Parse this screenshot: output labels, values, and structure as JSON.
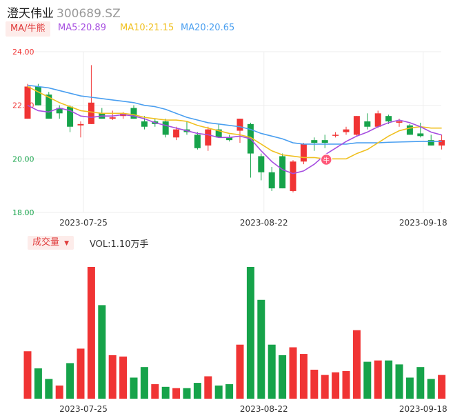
{
  "header": {
    "name": "澄天伟业",
    "code": "300689.SZ"
  },
  "legend": {
    "ma_tag": "MA/牛熊",
    "ma5": "MA5:20.89",
    "ma10": "MA10:21.15",
    "ma20": "MA20:20.65",
    "ma5_color": "#a64ee0",
    "ma10_color": "#f0c020",
    "ma20_color": "#4a9ff0"
  },
  "volume_panel": {
    "tag": "成交量",
    "tag_arrow": "▼",
    "value": "VOL:1.10万手"
  },
  "badge": {
    "icon": "bull-icon",
    "label": "牛"
  },
  "colors": {
    "up": "#f03434",
    "down": "#16a34a",
    "grid": "#eeeeee"
  },
  "chart_data": {
    "type": "candlestick",
    "y_ticks": [
      "24.00",
      "22.00",
      "20.00",
      "18.00"
    ],
    "ylim": [
      18,
      24
    ],
    "x_ticks": [
      "2023-07-25",
      "2023-08-22",
      "2023-09-18"
    ],
    "x_tick_index": [
      5,
      22,
      37
    ],
    "candles": [
      {
        "o": 21.5,
        "h": 22.8,
        "l": 21.5,
        "c": 22.7
      },
      {
        "o": 22.7,
        "h": 22.8,
        "l": 22.0,
        "c": 22.0
      },
      {
        "o": 22.4,
        "h": 22.5,
        "l": 21.5,
        "c": 21.5
      },
      {
        "o": 21.9,
        "h": 22.0,
        "l": 21.5,
        "c": 21.7
      },
      {
        "o": 21.95,
        "h": 22.0,
        "l": 21.0,
        "c": 21.2
      },
      {
        "o": 21.25,
        "h": 21.4,
        "l": 20.8,
        "c": 21.3
      },
      {
        "o": 21.3,
        "h": 23.5,
        "l": 21.3,
        "c": 22.1
      },
      {
        "o": 21.7,
        "h": 21.9,
        "l": 21.5,
        "c": 21.5
      },
      {
        "o": 21.5,
        "h": 21.8,
        "l": 21.45,
        "c": 21.55
      },
      {
        "o": 21.6,
        "h": 21.75,
        "l": 21.5,
        "c": 21.7
      },
      {
        "o": 21.9,
        "h": 22.0,
        "l": 21.5,
        "c": 21.5
      },
      {
        "o": 21.4,
        "h": 21.6,
        "l": 21.1,
        "c": 21.2
      },
      {
        "o": 21.4,
        "h": 21.5,
        "l": 21.2,
        "c": 21.3
      },
      {
        "o": 21.4,
        "h": 21.5,
        "l": 20.8,
        "c": 20.9
      },
      {
        "o": 20.8,
        "h": 21.2,
        "l": 20.7,
        "c": 21.1
      },
      {
        "o": 21.1,
        "h": 21.4,
        "l": 20.9,
        "c": 21.0
      },
      {
        "o": 20.9,
        "h": 21.0,
        "l": 20.35,
        "c": 20.4
      },
      {
        "o": 20.5,
        "h": 21.2,
        "l": 20.3,
        "c": 21.1
      },
      {
        "o": 21.1,
        "h": 21.3,
        "l": 20.8,
        "c": 20.8
      },
      {
        "o": 20.8,
        "h": 20.9,
        "l": 20.65,
        "c": 20.7
      },
      {
        "o": 21.05,
        "h": 21.5,
        "l": 20.6,
        "c": 21.5
      },
      {
        "o": 21.3,
        "h": 21.35,
        "l": 19.3,
        "c": 20.2
      },
      {
        "o": 20.1,
        "h": 20.2,
        "l": 19.2,
        "c": 19.5
      },
      {
        "o": 19.5,
        "h": 19.7,
        "l": 18.8,
        "c": 18.9
      },
      {
        "o": 20.1,
        "h": 20.2,
        "l": 18.9,
        "c": 18.9
      },
      {
        "o": 18.8,
        "h": 19.95,
        "l": 18.75,
        "c": 19.9
      },
      {
        "o": 19.9,
        "h": 20.6,
        "l": 19.8,
        "c": 20.55
      },
      {
        "o": 20.7,
        "h": 20.8,
        "l": 20.3,
        "c": 20.6
      },
      {
        "o": 20.7,
        "h": 20.9,
        "l": 20.4,
        "c": 20.6
      },
      {
        "o": 20.9,
        "h": 21.0,
        "l": 20.8,
        "c": 20.9
      },
      {
        "o": 21.0,
        "h": 21.2,
        "l": 20.9,
        "c": 21.1
      },
      {
        "o": 20.9,
        "h": 21.6,
        "l": 20.85,
        "c": 21.6
      },
      {
        "o": 21.4,
        "h": 21.7,
        "l": 21.1,
        "c": 21.2
      },
      {
        "o": 21.2,
        "h": 21.8,
        "l": 21.15,
        "c": 21.7
      },
      {
        "o": 21.6,
        "h": 21.65,
        "l": 21.3,
        "c": 21.4
      },
      {
        "o": 21.35,
        "h": 21.5,
        "l": 21.2,
        "c": 21.4
      },
      {
        "o": 21.25,
        "h": 21.3,
        "l": 20.9,
        "c": 20.9
      },
      {
        "o": 20.95,
        "h": 21.35,
        "l": 20.8,
        "c": 20.85
      },
      {
        "o": 20.7,
        "h": 20.9,
        "l": 20.5,
        "c": 20.5
      },
      {
        "o": 20.5,
        "h": 20.9,
        "l": 20.35,
        "c": 20.7
      }
    ],
    "volume": [
      {
        "v": 36,
        "up": true
      },
      {
        "v": 23,
        "up": false
      },
      {
        "v": 15,
        "up": false
      },
      {
        "v": 10,
        "up": true
      },
      {
        "v": 27,
        "up": false
      },
      {
        "v": 38,
        "up": true
      },
      {
        "v": 100,
        "up": true
      },
      {
        "v": 71,
        "up": false
      },
      {
        "v": 33,
        "up": true
      },
      {
        "v": 32,
        "up": true
      },
      {
        "v": 16,
        "up": false
      },
      {
        "v": 24,
        "up": false
      },
      {
        "v": 11,
        "up": true
      },
      {
        "v": 9,
        "up": false
      },
      {
        "v": 8,
        "up": true
      },
      {
        "v": 8,
        "up": false
      },
      {
        "v": 12,
        "up": false
      },
      {
        "v": 17,
        "up": true
      },
      {
        "v": 10,
        "up": false
      },
      {
        "v": 11,
        "up": false
      },
      {
        "v": 41,
        "up": true
      },
      {
        "v": 100,
        "up": false
      },
      {
        "v": 75,
        "up": false
      },
      {
        "v": 41,
        "up": false
      },
      {
        "v": 33,
        "up": false
      },
      {
        "v": 39,
        "up": true
      },
      {
        "v": 34,
        "up": true
      },
      {
        "v": 22,
        "up": true
      },
      {
        "v": 18,
        "up": true
      },
      {
        "v": 20,
        "up": true
      },
      {
        "v": 21,
        "up": true
      },
      {
        "v": 52,
        "up": true
      },
      {
        "v": 28,
        "up": false
      },
      {
        "v": 29,
        "up": true
      },
      {
        "v": 29,
        "up": false
      },
      {
        "v": 26,
        "up": false
      },
      {
        "v": 16,
        "up": false
      },
      {
        "v": 24,
        "up": false
      },
      {
        "v": 15,
        "up": false
      },
      {
        "v": 18,
        "up": true
      }
    ],
    "ma5_series": [
      22.0,
      21.8,
      21.75,
      21.9,
      21.8,
      21.6,
      21.55,
      21.6,
      21.6,
      21.65,
      21.6,
      21.5,
      21.35,
      21.25,
      21.15,
      21.05,
      20.95,
      20.9,
      20.8,
      20.8,
      20.85,
      20.75,
      20.3,
      19.9,
      19.6,
      19.45,
      19.55,
      19.8,
      20.15,
      20.4,
      20.65,
      20.85,
      21.0,
      21.2,
      21.35,
      21.45,
      21.35,
      21.2,
      21.0,
      20.89
    ],
    "ma10_series": [
      22.7,
      22.5,
      22.3,
      22.1,
      21.95,
      21.8,
      21.75,
      21.7,
      21.7,
      21.7,
      21.65,
      21.55,
      21.5,
      21.45,
      21.45,
      21.4,
      21.25,
      21.15,
      21.05,
      20.95,
      20.9,
      20.8,
      20.55,
      20.3,
      20.15,
      20.1,
      20.05,
      20.05,
      20.0,
      20.0,
      20.0,
      20.2,
      20.35,
      20.6,
      20.85,
      21.05,
      21.15,
      21.2,
      21.15,
      21.15
    ],
    "ma20_series": [
      22.75,
      22.7,
      22.65,
      22.55,
      22.45,
      22.35,
      22.3,
      22.25,
      22.2,
      22.15,
      22.1,
      22.0,
      21.95,
      21.85,
      21.7,
      21.55,
      21.45,
      21.35,
      21.3,
      21.25,
      21.2,
      21.1,
      20.95,
      20.85,
      20.75,
      20.6,
      20.55,
      20.55,
      20.55,
      20.55,
      20.55,
      20.6,
      20.6,
      20.6,
      20.62,
      20.63,
      20.64,
      20.65,
      20.65,
      20.65
    ]
  }
}
